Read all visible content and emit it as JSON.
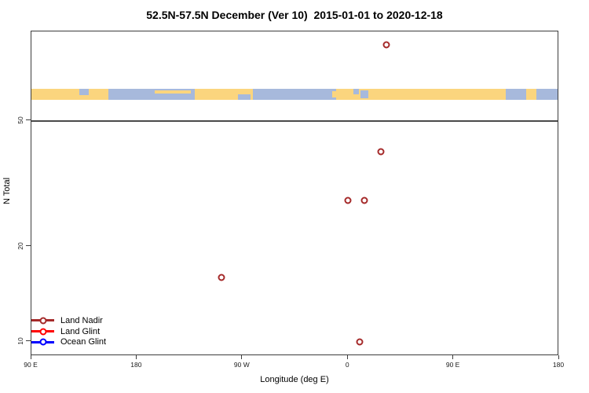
{
  "title": "52.5N-57.5N December (Ver 10)  2015-01-01 to 2020-12-18",
  "axes": {
    "x": {
      "label": "Longitude (deg E)",
      "min": 90,
      "max": 540,
      "ticks": [
        {
          "value": 90,
          "label": "90 E"
        },
        {
          "value": 180,
          "label": "180"
        },
        {
          "value": 270,
          "label": "90 W"
        },
        {
          "value": 360,
          "label": "0"
        },
        {
          "value": 450,
          "label": "90 E"
        },
        {
          "value": 540,
          "label": "180"
        }
      ]
    },
    "y": {
      "label": "N Total",
      "scale": "log",
      "min": 9,
      "max": 96,
      "ticks": [
        {
          "value": 10,
          "label": "10"
        },
        {
          "value": 20,
          "label": "20"
        },
        {
          "value": 50,
          "label": "50"
        }
      ]
    }
  },
  "legend": [
    {
      "label": "Land Nadir",
      "color": "#A52A2A"
    },
    {
      "label": "Land Glint",
      "color": "#FF0000"
    },
    {
      "label": "Ocean Glint",
      "color": "#0000FF"
    }
  ],
  "chart_data": {
    "type": "scatter",
    "title": "52.5N-57.5N December (Ver 10)  2015-01-01 to 2020-12-18",
    "xlabel": "Longitude (deg E)",
    "ylabel": "N Total",
    "x_axis_unwrapped_deg_e": [
      90,
      540
    ],
    "y_axis_log_range": [
      9,
      96
    ],
    "reference_line_y": 50,
    "marker": "open-circle",
    "series": [
      {
        "name": "Land Nadir",
        "color": "#A52A2A",
        "points": [
          {
            "lon_label": "33 E",
            "axis_x": 393,
            "n": 87
          },
          {
            "lon_label": "28 E",
            "axis_x": 388,
            "n": 40
          },
          {
            "lon_label": "0",
            "axis_x": 360,
            "n": 28
          },
          {
            "lon_label": "14 E",
            "axis_x": 374,
            "n": 28
          },
          {
            "lon_label": "108 W",
            "axis_x": 252,
            "n": 16
          },
          {
            "lon_label": "10 E",
            "axis_x": 370,
            "n": 10
          }
        ]
      },
      {
        "name": "Land Glint",
        "color": "#FF0000",
        "points": []
      },
      {
        "name": "Ocean Glint",
        "color": "#0000FF",
        "points": []
      }
    ]
  },
  "map_strip": {
    "description": "world coastline band 52.5N-57.5N",
    "land_color": "#FBD57E",
    "ocean_color": "#A7B9DC",
    "ocean_segments": [
      [
        9.1,
        1.8,
        0,
        60
      ],
      [
        14.7,
        16.4,
        0,
        100
      ],
      [
        39.3,
        2.3,
        50,
        50
      ],
      [
        42.1,
        15.8,
        0,
        100
      ],
      [
        61.2,
        1.0,
        0,
        50
      ],
      [
        62.6,
        1.4,
        15,
        70
      ],
      [
        90.2,
        3.8,
        0,
        100
      ],
      [
        95.9,
        4.1,
        0,
        100
      ]
    ],
    "land_overlays": [
      [
        23.5,
        6.8,
        15,
        25
      ],
      [
        57.2,
        1.4,
        20,
        60
      ]
    ]
  }
}
